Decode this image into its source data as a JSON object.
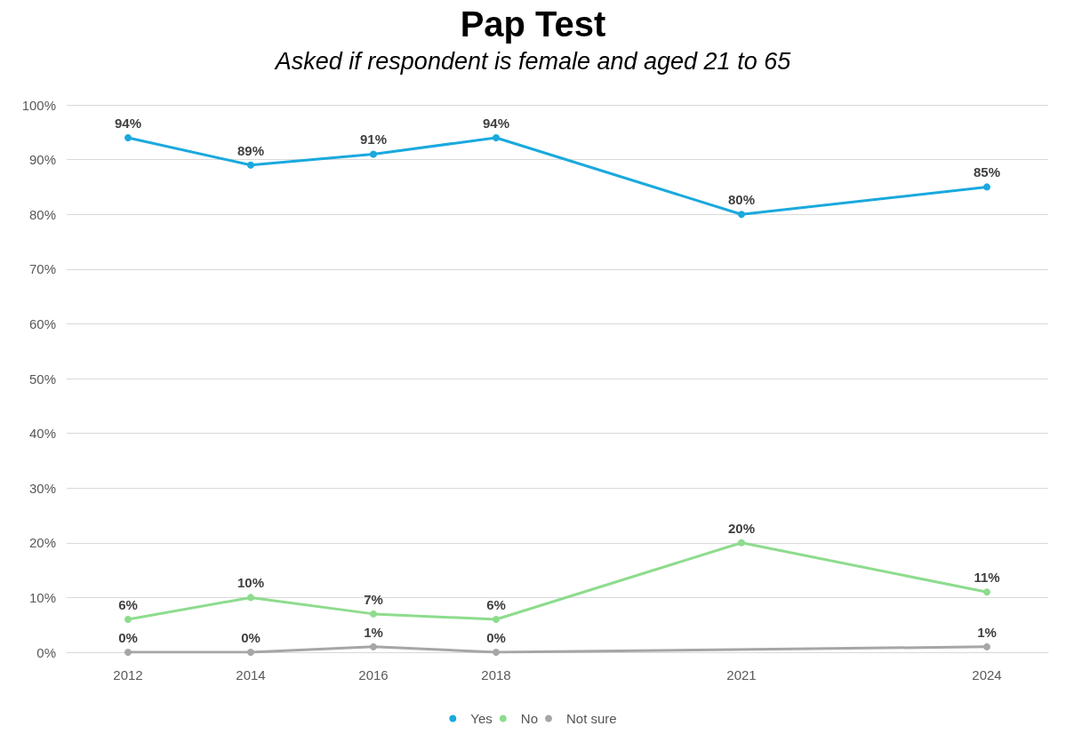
{
  "chart_data": {
    "type": "line",
    "title": "Pap Test",
    "subtitle": "Asked if respondent is female and aged 21 to 65",
    "categories": [
      "2012",
      "2014",
      "2016",
      "2018",
      null,
      "2021",
      null,
      "2024"
    ],
    "series": [
      {
        "name": "Yes",
        "color": "#1aa9de",
        "values": [
          94,
          89,
          91,
          94,
          null,
          80,
          null,
          85
        ],
        "value_labels": [
          "94%",
          "89%",
          "91%",
          "94%",
          null,
          "80%",
          null,
          "85%"
        ]
      },
      {
        "name": "No",
        "color": "#8ddc8d",
        "values": [
          6,
          10,
          7,
          6,
          null,
          20,
          null,
          11
        ],
        "value_labels": [
          "6%",
          "10%",
          "7%",
          "6%",
          null,
          "20%",
          null,
          "11%"
        ]
      },
      {
        "name": "Not sure",
        "color": "#a6a6a6",
        "values": [
          0,
          0,
          1,
          0,
          null,
          null,
          null,
          1
        ],
        "value_labels": [
          "0%",
          "0%",
          "1%",
          "0%",
          null,
          null,
          null,
          "1%"
        ]
      }
    ],
    "ylim": [
      0,
      100
    ],
    "yticks": [
      {
        "value": 0,
        "label": "0%"
      },
      {
        "value": 10,
        "label": "10%"
      },
      {
        "value": 20,
        "label": "20%"
      },
      {
        "value": 30,
        "label": "30%"
      },
      {
        "value": 40,
        "label": "40%"
      },
      {
        "value": 50,
        "label": "50%"
      },
      {
        "value": 60,
        "label": "60%"
      },
      {
        "value": 70,
        "label": "70%"
      },
      {
        "value": 80,
        "label": "80%"
      },
      {
        "value": 90,
        "label": "90%"
      },
      {
        "value": 100,
        "label": "100%"
      }
    ],
    "grid": "y",
    "legend": "bottom",
    "marker": "circle",
    "line_style": "solid",
    "data_labels": false
  }
}
